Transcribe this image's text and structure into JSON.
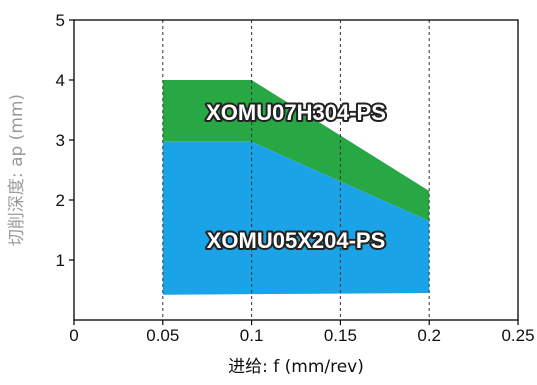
{
  "chart_data": {
    "type": "area",
    "xlabel": "进给: f (mm/rev)",
    "ylabel": "切削深度: ap (mm)",
    "xlim": [
      0,
      0.25
    ],
    "ylim": [
      0,
      5
    ],
    "x_ticks": [
      "0",
      "0.05",
      "0.1",
      "0.15",
      "0.2",
      "0.25"
    ],
    "y_ticks": [
      "1",
      "2",
      "3",
      "4",
      "5"
    ],
    "x_tick_values": [
      0,
      0.05,
      0.1,
      0.15,
      0.2,
      0.25
    ],
    "y_tick_values": [
      1,
      2,
      3,
      4,
      5
    ],
    "vertical_gridlines_at": [
      0.05,
      0.1,
      0.15,
      0.2
    ],
    "grid_style": "dashed vertical",
    "series": [
      {
        "name": "XOMU07H304-PS",
        "color": "#27a844",
        "upper": [
          [
            0.05,
            4.0
          ],
          [
            0.1,
            4.0
          ],
          [
            0.2,
            2.15
          ]
        ],
        "lower": [
          [
            0.05,
            2.97
          ],
          [
            0.1,
            2.97
          ],
          [
            0.2,
            1.65
          ]
        ]
      },
      {
        "name": "XOMU05X204-PS",
        "color": "#1aa3e6",
        "upper": [
          [
            0.05,
            2.97
          ],
          [
            0.1,
            2.97
          ],
          [
            0.2,
            1.65
          ]
        ],
        "lower": [
          [
            0.05,
            0.42
          ],
          [
            0.2,
            0.45
          ]
        ]
      }
    ]
  }
}
